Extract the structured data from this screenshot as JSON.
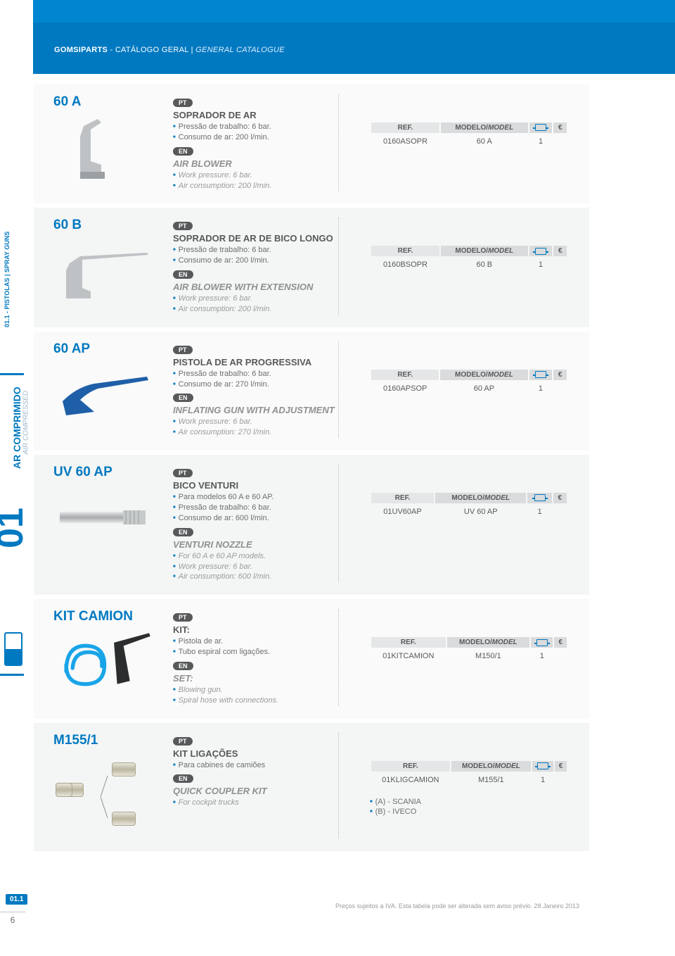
{
  "header": {
    "brand": "GOMSIPARTS",
    "sep": " - CATÁLOGO GERAL  |  ",
    "en": "GENERAL CATALOGUE"
  },
  "sidebar": {
    "section_code": "01.1 - PISTOLAS | SPRAY GUNS",
    "category_pt": "AR COMPRIMIDO",
    "category_en": "AIR COMPRESSED",
    "big_number": "01",
    "footer_code": "01.1",
    "page_number": "6"
  },
  "tableHeaders": {
    "ref": "REF.",
    "model_pt": "MODELO/",
    "model_en": "MODEL",
    "euro": "€"
  },
  "products": [
    {
      "code": "60 A",
      "pt_title": "SOPRADOR DE AR",
      "pt_lines": [
        "Pressão de trabalho: 6 bar.",
        "Consumo de ar: 200 l/min."
      ],
      "en_title": "AIR BLOWER",
      "en_lines": [
        "Work pressure: 6 bar.",
        "Air consumption: 200 l/min."
      ],
      "row": {
        "ref": "0160ASOPR",
        "model": "60 A",
        "qty": "1"
      }
    },
    {
      "code": "60 B",
      "pt_title": "SOPRADOR DE AR DE BICO LONGO",
      "pt_lines": [
        "Pressão de trabalho: 6 bar.",
        "Consumo de ar: 200 l/min."
      ],
      "en_title": "AIR BLOWER WITH EXTENSION",
      "en_lines": [
        "Work pressure: 6 bar.",
        "Air consumption: 200 l/min."
      ],
      "row": {
        "ref": "0160BSOPR",
        "model": "60 B",
        "qty": "1"
      }
    },
    {
      "code": "60 AP",
      "pt_title": "PISTOLA DE AR PROGRESSIVA",
      "pt_lines": [
        "Pressão de trabalho: 6 bar.",
        "Consumo de ar: 270 l/min."
      ],
      "en_title": "INFLATING GUN WITH ADJUSTMENT",
      "en_lines": [
        "Work pressure: 6 bar.",
        "Air consumption: 270 l/min."
      ],
      "row": {
        "ref": "0160APSOP",
        "model": "60 AP",
        "qty": "1"
      }
    },
    {
      "code": "UV 60 AP",
      "pt_title": "BICO VENTURI",
      "pt_lines": [
        "Para modelos 60 A e 60 AP.",
        "Pressão de trabalho: 6 bar.",
        "Consumo de ar: 600 l/min."
      ],
      "en_title": "VENTURI NOZZLE",
      "en_lines": [
        "For 60 A e 60 AP models.",
        "Work pressure: 6 bar.",
        "Air consumption: 600 l/min."
      ],
      "row": {
        "ref": "01UV60AP",
        "model": "UV 60 AP",
        "qty": "1"
      }
    },
    {
      "code": "KIT CAMION",
      "pt_title": "KIT:",
      "pt_lines": [
        "Pistola de ar.",
        "Tubo espiral com ligações."
      ],
      "en_title": "SET:",
      "en_lines": [
        "Blowing gun.",
        "Spiral hose with connections."
      ],
      "row": {
        "ref": "01KITCAMION",
        "model": "M150/1",
        "qty": "1"
      }
    },
    {
      "code": "M155/1",
      "pt_title": "KIT LIGAÇÕES",
      "pt_lines": [
        "Para cabines de camiões"
      ],
      "en_title": "QUICK COUPLER KIT",
      "en_lines": [
        "For cockpit trucks"
      ],
      "row": {
        "ref": "01KLIGCAMION",
        "model": "M155/1",
        "qty": "1"
      },
      "notes": [
        "(A) - SCANIA",
        "(B) - IVECO"
      ],
      "labels": {
        "a": "(A)",
        "b": "(B)"
      }
    }
  ],
  "lang": {
    "pt": "PT",
    "en": "EN"
  },
  "footer_note": "Preços sujeitos a IVA. Esta tabela pode ser alterada sem aviso prévio. 28 Janeiro 2013",
  "colors": {
    "primary": "#0079c1",
    "text_dark": "#58595b",
    "text_mid": "#6d6e71",
    "text_light": "#9a9b9d",
    "row_bg_a": "#fafafa",
    "row_bg_b": "#f4f5f5",
    "th_bg": "#d9dbdc"
  }
}
